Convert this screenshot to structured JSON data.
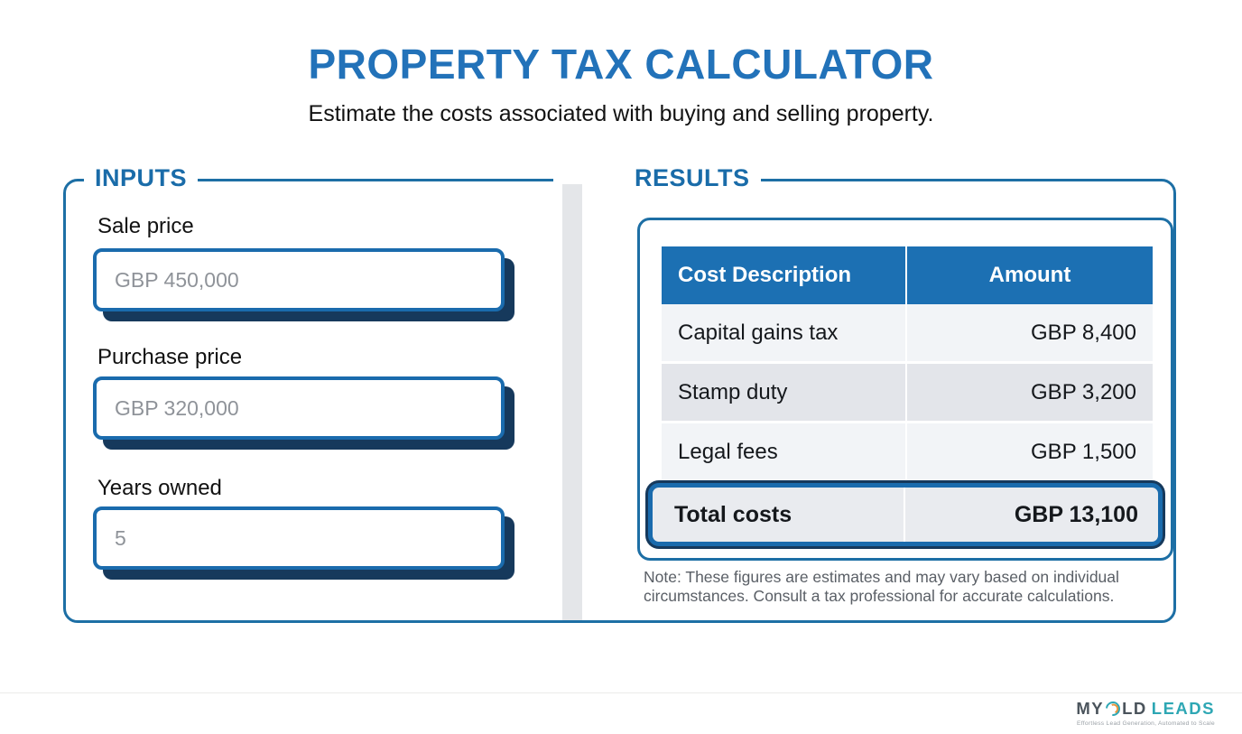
{
  "header": {
    "title": "PROPERTY TAX CALCULATOR",
    "subtitle": "Estimate the costs associated with buying and selling property."
  },
  "inputs": {
    "legend": "INPUTS",
    "fields": [
      {
        "label": "Sale price",
        "placeholder": "GBP 450,000",
        "value": ""
      },
      {
        "label": "Purchase price",
        "placeholder": "GBP 320,000",
        "value": ""
      },
      {
        "label": "Years owned",
        "placeholder": "",
        "value": "5"
      }
    ]
  },
  "results": {
    "legend": "RESULTS",
    "table": {
      "columns": [
        "Cost Description",
        "Amount"
      ],
      "rows": [
        {
          "description": "Capital gains tax",
          "amount": "GBP 8,400"
        },
        {
          "description": "Stamp duty",
          "amount": "GBP 3,200"
        },
        {
          "description": "Legal fees",
          "amount": "GBP 1,500"
        }
      ],
      "total_row": {
        "description": "Total costs",
        "amount": "GBP 13,100"
      }
    },
    "note": "Note: These figures are estimates and may vary based on individual circumstances. Consult a tax professional for accurate calculations."
  },
  "footer": {
    "logo": {
      "part1": "MY",
      "part2": "LD",
      "accent": "LEADS",
      "icon": "cold-ring-icon",
      "tagline": "Effortless Lead Generation, Automated to Scale"
    }
  },
  "colors": {
    "title_blue": "#2272B9",
    "legend_blue": "#1A6CA9",
    "panel_border_blue": "#1D6FA5",
    "input_border_blue": "#1A6BAD",
    "shadow_navy": "#16395C",
    "table_header_blue": "#1C70B3",
    "row_light": "#F2F4F7",
    "row_dark": "#E3E5EA",
    "total_row_bg": "#E9EBEF",
    "note_gray": "#5A5F66",
    "placeholder_gray": "#8F9399",
    "divider_gray": "#E4E6E9",
    "logo_teal": "#2EA7B4",
    "logo_orange": "#E8953C"
  }
}
